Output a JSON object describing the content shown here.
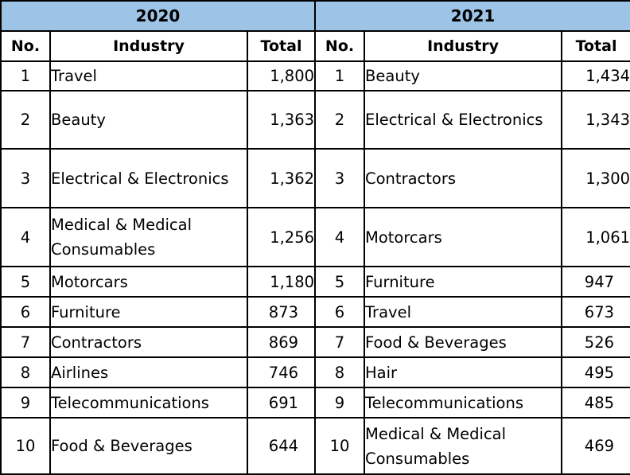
{
  "headers": {
    "year_left": "2020",
    "year_right": "2021",
    "no": "No.",
    "industry": "Industry",
    "total": "Total"
  },
  "colors": {
    "header_fill": "#9dc3e6",
    "border": "#000000"
  },
  "rows": [
    {
      "no_2020": "1",
      "industry_2020": "Travel",
      "total_2020": "1,800",
      "no_2021": "1",
      "industry_2021": "Beauty",
      "total_2021": "1,434"
    },
    {
      "no_2020": "2",
      "industry_2020": "Beauty",
      "total_2020": "1,363",
      "no_2021": "2",
      "industry_2021": "Electrical & Electronics",
      "total_2021": "1,343"
    },
    {
      "no_2020": "3",
      "industry_2020": "Electrical & Electronics",
      "total_2020": "1,362",
      "no_2021": "3",
      "industry_2021": "Contractors",
      "total_2021": "1,300"
    },
    {
      "no_2020": "4",
      "industry_2020": "Medical & Medical Consumables",
      "total_2020": "1,256",
      "no_2021": "4",
      "industry_2021": "Motorcars",
      "total_2021": "1,061"
    },
    {
      "no_2020": "5",
      "industry_2020": "Motorcars",
      "total_2020": "1,180",
      "no_2021": "5",
      "industry_2021": "Furniture",
      "total_2021": "947"
    },
    {
      "no_2020": "6",
      "industry_2020": "Furniture",
      "total_2020": "873",
      "no_2021": "6",
      "industry_2021": "Travel",
      "total_2021": "673"
    },
    {
      "no_2020": "7",
      "industry_2020": "Contractors",
      "total_2020": "869",
      "no_2021": "7",
      "industry_2021": "Food & Beverages",
      "total_2021": "526"
    },
    {
      "no_2020": "8",
      "industry_2020": "Airlines",
      "total_2020": "746",
      "no_2021": "8",
      "industry_2021": "Hair",
      "total_2021": "495"
    },
    {
      "no_2020": "9",
      "industry_2020": "Telecommunications",
      "total_2020": "691",
      "no_2021": "9",
      "industry_2021": "Telecommunications",
      "total_2021": "485"
    },
    {
      "no_2020": "10",
      "industry_2020": "Food & Beverages",
      "total_2020": "644",
      "no_2021": "10",
      "industry_2021": "Medical & Medical Consumables",
      "total_2021": "469"
    }
  ]
}
